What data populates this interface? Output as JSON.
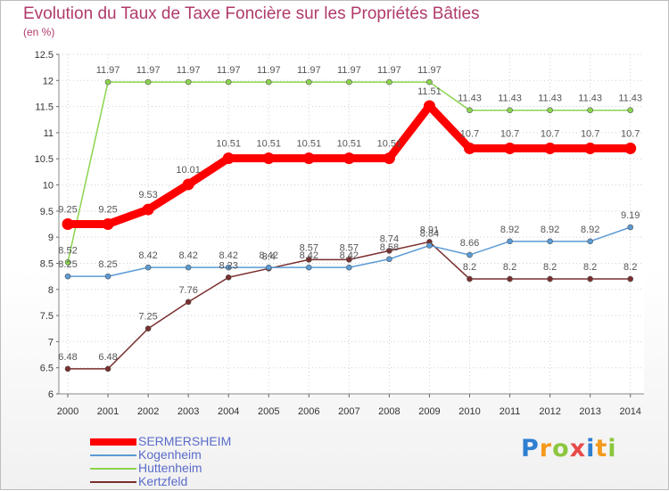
{
  "chart_data": {
    "type": "line",
    "title": "Evolution du Taux de Taxe Foncière sur les Propriétés Bâties",
    "subtitle": "(en %)",
    "xlabel": "",
    "ylabel": "",
    "ylim": [
      6,
      12.5
    ],
    "yticks": [
      "6",
      "6.5",
      "7",
      "7.5",
      "8",
      "8.5",
      "9",
      "9.5",
      "10",
      "10.5",
      "11",
      "11.5",
      "12",
      "12.5"
    ],
    "categories": [
      "2000",
      "2001",
      "2002",
      "2003",
      "2004",
      "2005",
      "2006",
      "2007",
      "2008",
      "2009",
      "2010",
      "2011",
      "2012",
      "2013",
      "2014"
    ],
    "grid": true,
    "legend_position": "bottom-left",
    "series": [
      {
        "name": "SERMERSHEIM",
        "color": "#ff0000",
        "values": [
          9.25,
          9.25,
          9.53,
          10.01,
          10.51,
          10.51,
          10.51,
          10.51,
          10.51,
          11.51,
          10.7,
          10.7,
          10.7,
          10.7,
          10.7
        ],
        "labels": [
          "9.25",
          "9.25",
          "9.53",
          "10.01",
          "10.51",
          "10.51",
          "10.51",
          "10.51",
          "10.51",
          "11.51",
          "10.7",
          "10.7",
          "10.7",
          "10.7",
          "10.7"
        ]
      },
      {
        "name": "Kogenheim",
        "color": "#5b9bd5",
        "values": [
          8.25,
          8.25,
          8.42,
          8.42,
          8.42,
          8.42,
          8.42,
          8.42,
          8.58,
          8.84,
          8.66,
          8.92,
          8.92,
          8.92,
          9.19
        ],
        "labels": [
          "8.25",
          "8.25",
          "8.42",
          "8.42",
          "8.42",
          "8.42",
          "8.42",
          "8.42",
          "8.58",
          "8.84",
          "8.66",
          "8.92",
          "8.92",
          "8.92",
          "9.19"
        ]
      },
      {
        "name": "Huttenheim",
        "color": "#8bd44f",
        "values": [
          8.52,
          11.97,
          11.97,
          11.97,
          11.97,
          11.97,
          11.97,
          11.97,
          11.97,
          11.97,
          11.43,
          11.43,
          11.43,
          11.43,
          11.43
        ],
        "labels": [
          "8.52",
          "11.97",
          "11.97",
          "11.97",
          "11.97",
          "11.97",
          "11.97",
          "11.97",
          "11.97",
          "11.97",
          "11.43",
          "11.43",
          "11.43",
          "11.43",
          "11.43"
        ]
      },
      {
        "name": "Kertzfeld",
        "color": "#7a2e2e",
        "values": [
          6.48,
          6.48,
          7.25,
          7.76,
          8.23,
          8.4,
          8.57,
          8.57,
          8.74,
          8.91,
          8.2,
          8.2,
          8.2,
          8.2,
          8.2
        ],
        "labels": [
          "6.48",
          "6.48",
          "7.25",
          "7.76",
          "8.23",
          "8.4",
          "8.57",
          "8.57",
          "8.74",
          "8.91",
          "8.2",
          "8.2",
          "8.2",
          "8.2",
          "8.2"
        ]
      }
    ]
  },
  "logo": {
    "letters": [
      "P",
      "r",
      "o",
      "x",
      "i",
      "t",
      "i"
    ],
    "colors": [
      "#2f7fd1",
      "#f39a1b",
      "#8cc63f",
      "#e84a4a",
      "#2f7fd1",
      "#f39a1b",
      "#8cc63f"
    ]
  }
}
